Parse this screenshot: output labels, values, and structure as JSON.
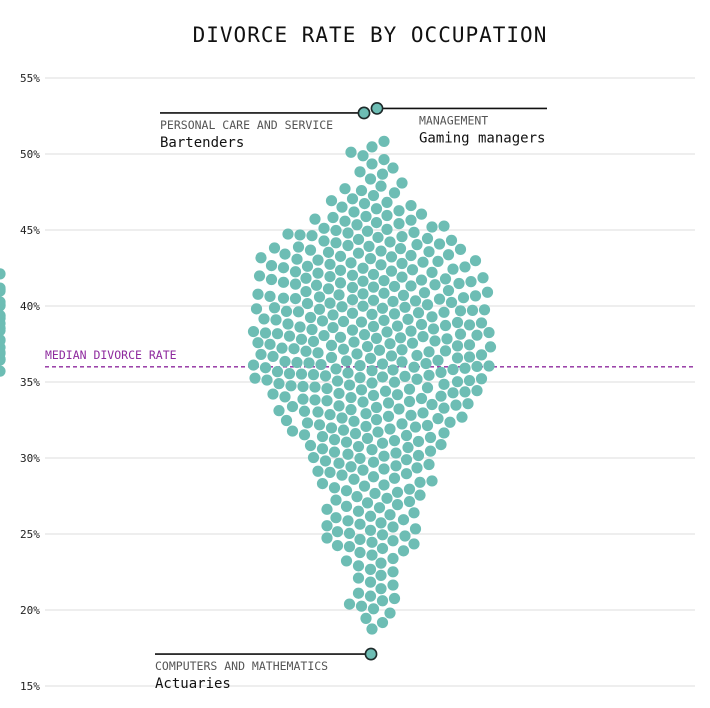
{
  "chart_data": {
    "type": "scatter",
    "subtype": "beeswarm",
    "title": "DIVORCE RATE BY OCCUPATION",
    "ylim": [
      15,
      55
    ],
    "y_ticks": [
      "15%",
      "20%",
      "25%",
      "30%",
      "35%",
      "40%",
      "45%",
      "50%",
      "55%"
    ],
    "y_tick_values": [
      15,
      20,
      25,
      30,
      35,
      40,
      45,
      50,
      55
    ],
    "grid": true,
    "dot_color": "#6dbdb4",
    "highlight_outline": "#1e2a2a",
    "median": {
      "label": "MEDIAN DIVORCE RATE",
      "value": 36.0,
      "color": "#8e2a9e"
    },
    "distribution_approx": [
      {
        "range": [
          18.5,
          19
        ],
        "count": 1
      },
      {
        "range": [
          19,
          20
        ],
        "count": 3
      },
      {
        "range": [
          20,
          21
        ],
        "count": 6
      },
      {
        "range": [
          21,
          22
        ],
        "count": 4
      },
      {
        "range": [
          22,
          23
        ],
        "count": 5
      },
      {
        "range": [
          23,
          24
        ],
        "count": 6
      },
      {
        "range": [
          24,
          25
        ],
        "count": 10
      },
      {
        "range": [
          25,
          26
        ],
        "count": 10
      },
      {
        "range": [
          26,
          27
        ],
        "count": 9
      },
      {
        "range": [
          27,
          28
        ],
        "count": 10
      },
      {
        "range": [
          28,
          29
        ],
        "count": 11
      },
      {
        "range": [
          29,
          30
        ],
        "count": 13
      },
      {
        "range": [
          30,
          31
        ],
        "count": 14
      },
      {
        "range": [
          31,
          32
        ],
        "count": 16
      },
      {
        "range": [
          32,
          33
        ],
        "count": 18
      },
      {
        "range": [
          33,
          34
        ],
        "count": 20
      },
      {
        "range": [
          34,
          35
        ],
        "count": 22
      },
      {
        "range": [
          35,
          36
        ],
        "count": 26
      },
      {
        "range": [
          36,
          37
        ],
        "count": 30
      },
      {
        "range": [
          37,
          38
        ],
        "count": 28
      },
      {
        "range": [
          38,
          39
        ],
        "count": 30
      },
      {
        "range": [
          39,
          40
        ],
        "count": 30
      },
      {
        "range": [
          40,
          41
        ],
        "count": 28
      },
      {
        "range": [
          41,
          42
        ],
        "count": 26
      },
      {
        "range": [
          42,
          43
        ],
        "count": 22
      },
      {
        "range": [
          43,
          44
        ],
        "count": 20
      },
      {
        "range": [
          44,
          45
        ],
        "count": 17
      },
      {
        "range": [
          45,
          46
        ],
        "count": 13
      },
      {
        "range": [
          46,
          47
        ],
        "count": 9
      },
      {
        "range": [
          47,
          48
        ],
        "count": 6
      },
      {
        "range": [
          48,
          49
        ],
        "count": 4
      },
      {
        "range": [
          49,
          50
        ],
        "count": 4
      },
      {
        "range": [
          50,
          51
        ],
        "count": 3
      }
    ],
    "highlights": [
      {
        "category": "PERSONAL CARE AND SERVICE",
        "occupation": "Bartenders",
        "value": 52.7,
        "side": "left"
      },
      {
        "category": "MANAGEMENT",
        "occupation": "Gaming managers",
        "value": 53.0,
        "side": "right"
      },
      {
        "category": "COMPUTERS AND MATHEMATICS",
        "occupation": "Actuaries",
        "value": 17.1,
        "side": "left"
      }
    ]
  }
}
